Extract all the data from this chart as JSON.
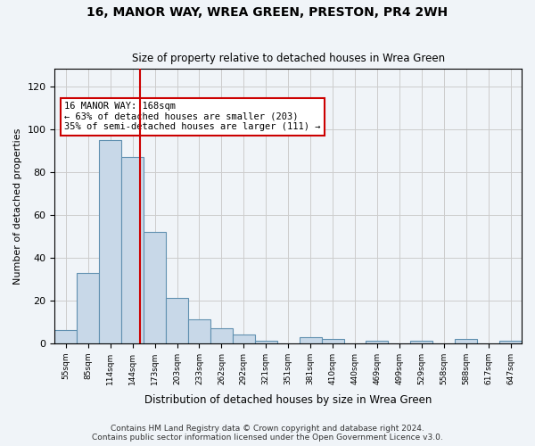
{
  "title1": "16, MANOR WAY, WREA GREEN, PRESTON, PR4 2WH",
  "title2": "Size of property relative to detached houses in Wrea Green",
  "xlabel": "Distribution of detached houses by size in Wrea Green",
  "ylabel": "Number of detached properties",
  "bar_color": "#c8d8e8",
  "bar_edge_color": "#6090b0",
  "property_line_x": 168,
  "annotation_text": "16 MANOR WAY: 168sqm\n← 63% of detached houses are smaller (203)\n35% of semi-detached houses are larger (111) →",
  "annotation_box_color": "#ffffff",
  "annotation_box_edge": "#cc0000",
  "red_line_color": "#cc0000",
  "footer1": "Contains HM Land Registry data © Crown copyright and database right 2024.",
  "footer2": "Contains public sector information licensed under the Open Government Licence v3.0.",
  "background_color": "#f0f4f8",
  "bins": [
    55,
    85,
    114,
    144,
    173,
    203,
    233,
    262,
    292,
    321,
    351,
    381,
    410,
    440,
    469,
    499,
    529,
    558,
    588,
    617,
    647
  ],
  "counts": [
    6,
    33,
    95,
    87,
    52,
    21,
    11,
    7,
    4,
    1,
    0,
    3,
    2,
    0,
    1,
    0,
    1,
    0,
    2,
    0,
    1
  ],
  "ylim": [
    0,
    128
  ],
  "yticks": [
    0,
    20,
    40,
    60,
    80,
    100,
    120
  ],
  "grid_color": "#cccccc",
  "bin_labels": [
    "55sqm",
    "85sqm",
    "114sqm",
    "144sqm",
    "173sqm",
    "203sqm",
    "233sqm",
    "262sqm",
    "292sqm",
    "321sqm",
    "351sqm",
    "381sqm",
    "410sqm",
    "440sqm",
    "469sqm",
    "499sqm",
    "529sqm",
    "558sqm",
    "588sqm",
    "617sqm",
    "647sqm"
  ]
}
